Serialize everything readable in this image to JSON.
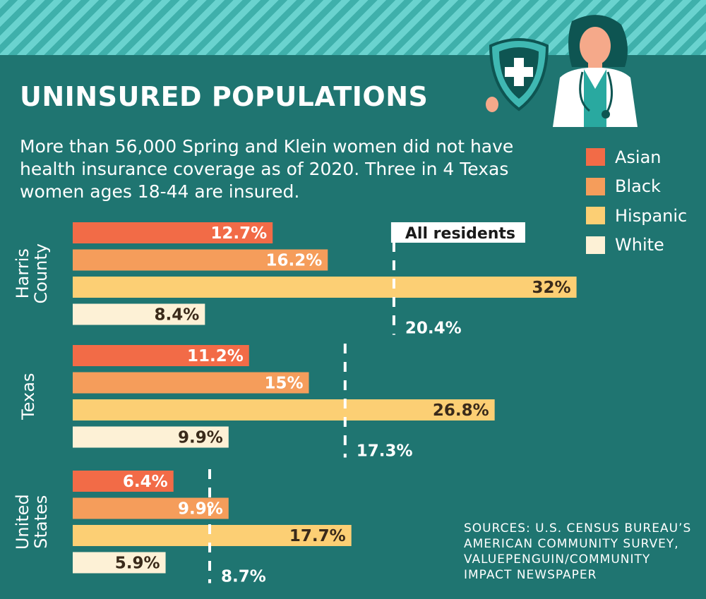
{
  "title": "UNINSURED POPULATIONS",
  "intro": "More than 56,000 Spring and Klein women did not have health insurance coverage as of 2020. Three in 4 Texas women ages 18-44 are insured.",
  "sources": [
    "SOURCES: U.S. CENSUS BUREAU’S",
    "AMERICAN COMMUNITY SURVEY,",
    "VALUEPENGUIN/COMMUNITY",
    "IMPACT NEWSPAPER"
  ],
  "legend": [
    {
      "label": "Asian",
      "color": "#f26b47"
    },
    {
      "label": "Black",
      "color": "#f59d5b"
    },
    {
      "label": "Hispanic",
      "color": "#fccf74"
    },
    {
      "label": "White",
      "color": "#fdf1d6"
    }
  ],
  "chart_data": {
    "type": "bar",
    "orientation": "horizontal",
    "unit": "%",
    "xlim": [
      0,
      32
    ],
    "reference_label": "All residents",
    "groups": [
      {
        "name": [
          "Harris",
          "County"
        ],
        "values": [
          12.7,
          16.2,
          32,
          8.4
        ],
        "labels": [
          "12.7%",
          "16.2%",
          "32%",
          "8.4%"
        ],
        "reference": 20.4,
        "reference_text": "20.4%"
      },
      {
        "name": [
          "Texas"
        ],
        "values": [
          11.2,
          15,
          26.8,
          9.9
        ],
        "labels": [
          "11.2%",
          "15%",
          "26.8%",
          "9.9%"
        ],
        "reference": 17.3,
        "reference_text": "17.3%"
      },
      {
        "name": [
          "United",
          "States"
        ],
        "values": [
          6.4,
          9.9,
          17.7,
          5.9
        ],
        "labels": [
          "6.4%",
          "9.9%",
          "17.7%",
          "5.9%"
        ],
        "reference": 8.7,
        "reference_text": "8.7%"
      }
    ],
    "series": [
      "Asian",
      "Black",
      "Hispanic",
      "White"
    ],
    "colors": [
      "#f26b47",
      "#f59d5b",
      "#fccf74",
      "#fdf1d6"
    ],
    "legend_position": "right",
    "grid": false
  }
}
